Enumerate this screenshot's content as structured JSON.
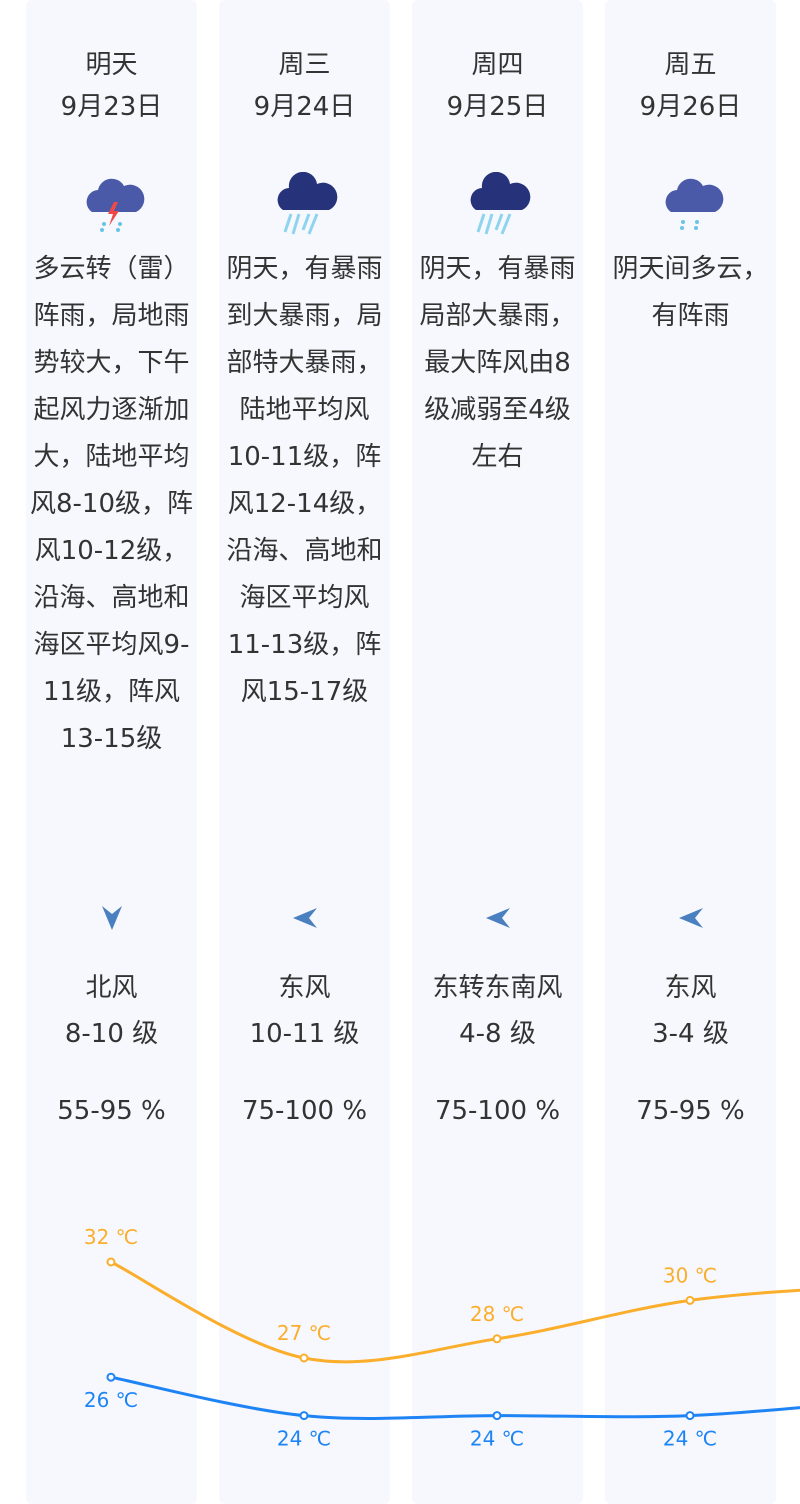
{
  "days": [
    {
      "day": "明天",
      "date": "9月23日",
      "icon": "thunder-shower-icon",
      "desc": "多云转（雷）阵雨，局地雨势较大，下午起风力逐渐加大，陆地平均风8-10级，阵风10-12级，沿海、高地和海区平均风9-11级，阵风13-15级",
      "wind_dir": "北风",
      "wind_level": "8-10 级",
      "wind_arrow": "down",
      "humidity": "55-95 %"
    },
    {
      "day": "周三",
      "date": "9月24日",
      "icon": "heavy-rain-icon",
      "desc": "阴天，有暴雨到大暴雨，局部特大暴雨，陆地平均风10-11级，阵风12-14级，沿海、高地和海区平均风11-13级，阵风15-17级",
      "wind_dir": "东风",
      "wind_level": "10-11 级",
      "wind_arrow": "left",
      "humidity": "75-100 %"
    },
    {
      "day": "周四",
      "date": "9月25日",
      "icon": "heavy-rain-icon",
      "desc": "阴天，有暴雨局部大暴雨，最大阵风由8级减弱至4级左右",
      "wind_dir": "东转东南风",
      "wind_level": "4-8 级",
      "wind_arrow": "left",
      "humidity": "75-100 %"
    },
    {
      "day": "周五",
      "date": "9月26日",
      "icon": "shower-icon",
      "desc": "阴天间多云，有阵雨",
      "wind_dir": "东风",
      "wind_level": "3-4 级",
      "wind_arrow": "left",
      "humidity": "75-95 %"
    }
  ],
  "chart_data": {
    "type": "line",
    "categories": [
      "9月23日",
      "9月24日",
      "9月25日",
      "9月26日"
    ],
    "series": [
      {
        "values": [
          32,
          27,
          28,
          30
        ],
        "labels": [
          "32 ℃",
          "27 ℃",
          "28 ℃",
          "30 ℃"
        ],
        "color": "#fbae2c"
      },
      {
        "values": [
          26,
          24,
          24,
          24
        ],
        "labels": [
          "26 ℃",
          "24 ℃",
          "24 ℃",
          "24 ℃"
        ],
        "color": "#1e84f5"
      }
    ]
  }
}
